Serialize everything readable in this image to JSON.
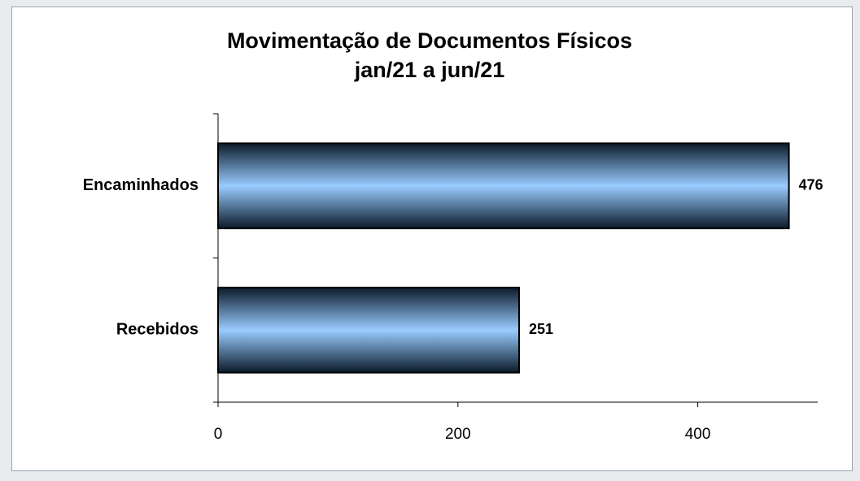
{
  "chart_data": {
    "type": "hbar",
    "title": "Movimentação de Documentos Físicos",
    "subtitle": "jan/21 a jun/21",
    "categories": [
      "Encaminhados",
      "Recebidos"
    ],
    "values": [
      476,
      251
    ],
    "color": "#99ccff",
    "xlim": [
      0,
      500
    ],
    "xticks": [
      0,
      200,
      400
    ],
    "grid": false
  }
}
